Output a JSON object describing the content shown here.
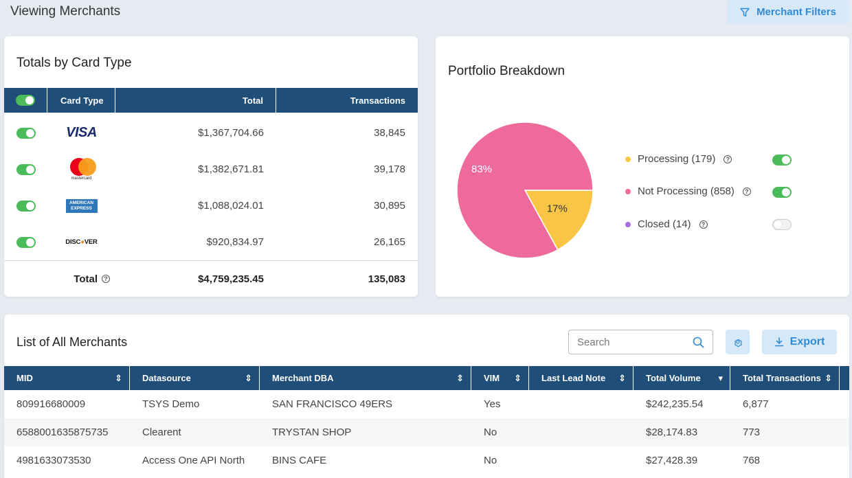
{
  "header": {
    "title": "Viewing Merchants",
    "filters_label": "Merchant Filters"
  },
  "totals": {
    "title": "Totals by Card Type",
    "columns": {
      "card_type": "Card Type",
      "total": "Total",
      "transactions": "Transactions"
    },
    "rows": [
      {
        "brand": "Visa",
        "logo_text": "VISA",
        "total": "$1,367,704.66",
        "transactions": "38,845",
        "enabled": true
      },
      {
        "brand": "Mastercard",
        "logo_text": "mastercard",
        "total": "$1,382,671.81",
        "transactions": "39,178",
        "enabled": true
      },
      {
        "brand": "American Express",
        "logo_text": "AMERICAN EXPRESS",
        "total": "$1,088,024.01",
        "transactions": "30,895",
        "enabled": true
      },
      {
        "brand": "Discover",
        "logo_text_a": "DISC",
        "logo_text_b": "VER",
        "total": "$920,834.97",
        "transactions": "26,165",
        "enabled": true
      }
    ],
    "footer": {
      "label": "Total",
      "total": "$4,759,235.45",
      "transactions": "135,083"
    }
  },
  "portfolio": {
    "title": "Portfolio Breakdown",
    "legend": [
      {
        "label": "Processing (179)",
        "color": "#f9c545",
        "enabled": true
      },
      {
        "label": "Not Processing (858)",
        "color": "#ee6a9b",
        "enabled": true
      },
      {
        "label": "Closed (14)",
        "color": "#a36ee0",
        "enabled": false
      }
    ]
  },
  "chart_data": {
    "type": "pie",
    "title": "Portfolio Breakdown",
    "slices": [
      {
        "name": "Not Processing",
        "value": 83,
        "label": "83%",
        "color": "#ee6a9b"
      },
      {
        "name": "Processing",
        "value": 17,
        "label": "17%",
        "color": "#f9c545"
      }
    ]
  },
  "merchants": {
    "title": "List of All Merchants",
    "search_placeholder": "Search",
    "export_label": "Export",
    "columns": [
      "MID",
      "Datasource",
      "Merchant DBA",
      "VIM",
      "Last Lead Note",
      "Total Volume",
      "Total Transactions"
    ],
    "rows": [
      [
        "809916680009",
        "TSYS Demo",
        "SAN FRANCISCO 49ERS",
        "Yes",
        "",
        "$242,235.54",
        "6,877"
      ],
      [
        "6588001635875735",
        "Clearent",
        "TRYSTAN SHOP",
        "No",
        "",
        "$28,174.83",
        "773"
      ],
      [
        "4981633073530",
        "Access One API North",
        "BINS CAFE",
        "No",
        "",
        "$27,428.39",
        "768"
      ]
    ]
  }
}
